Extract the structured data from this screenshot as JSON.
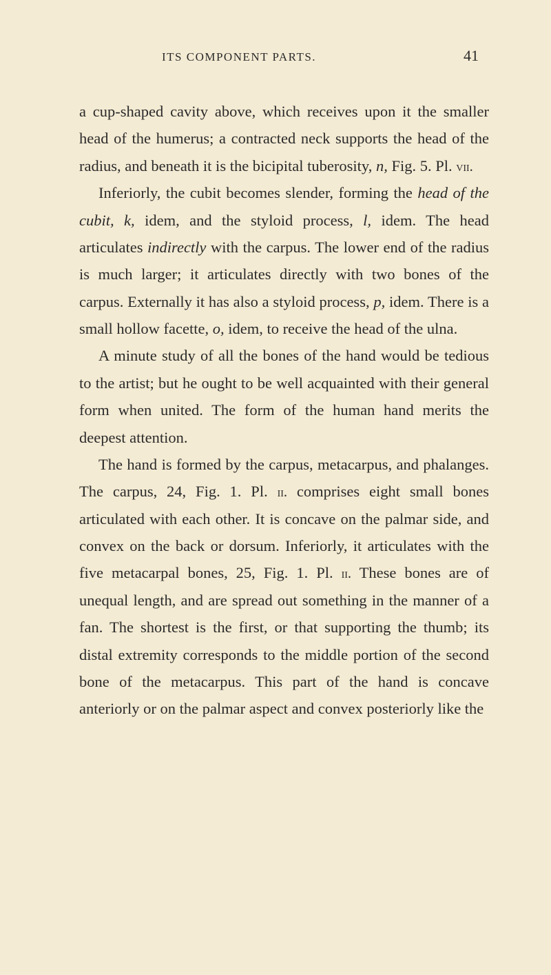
{
  "header": {
    "running_head": "ITS COMPONENT PARTS.",
    "page_number": "41"
  },
  "paragraphs": [
    {
      "segments": [
        {
          "text": "a cup-shaped cavity above, which receives upon it the smaller head of the humerus; a contracted neck supports the head of the radius, and beneath it is the bicipital tuberosity, ",
          "style": "normal"
        },
        {
          "text": "n,",
          "style": "italic"
        },
        {
          "text": " Fig. 5. Pl. ",
          "style": "normal"
        },
        {
          "text": "vii.",
          "style": "sc"
        }
      ]
    },
    {
      "segments": [
        {
          "text": "Inferiorly, the cubit becomes slender, forming the ",
          "style": "normal"
        },
        {
          "text": "head of the cubit, k,",
          "style": "italic"
        },
        {
          "text": " idem, and the styloid process, ",
          "style": "normal"
        },
        {
          "text": "l,",
          "style": "italic"
        },
        {
          "text": " idem. The head articulates ",
          "style": "normal"
        },
        {
          "text": "indirectly",
          "style": "italic"
        },
        {
          "text": " with the carpus. The lower end of the radius is much larger; it articulates directly with two bones of the carpus. Externally it has also a styloid process, ",
          "style": "normal"
        },
        {
          "text": "p,",
          "style": "italic"
        },
        {
          "text": " idem. There is a small hollow facette, ",
          "style": "normal"
        },
        {
          "text": "o,",
          "style": "italic"
        },
        {
          "text": " idem, to receive the head of the ulna.",
          "style": "normal"
        }
      ]
    },
    {
      "segments": [
        {
          "text": "A minute study of all the bones of the hand would be tedious to the artist; but he ought to be well acquainted with their general form when united. The form of the human hand merits the deepest attention.",
          "style": "normal"
        }
      ]
    },
    {
      "segments": [
        {
          "text": "The hand is formed by the carpus, metacarpus, and phalanges. The carpus, 24, Fig. 1. Pl. ",
          "style": "normal"
        },
        {
          "text": "ii.",
          "style": "sc"
        },
        {
          "text": " comprises eight small bones articulated with each other. It is concave on the palmar side, and convex on the back or dorsum. Inferiorly, it articulates with the five metacarpal bones, 25, Fig. 1. Pl. ",
          "style": "normal"
        },
        {
          "text": "ii.",
          "style": "sc"
        },
        {
          "text": " These bones are of unequal length, and are spread out something in the manner of a fan. The shortest is the first, or that supporting the thumb; its distal extremity corresponds to the middle portion of the second bone of the metacarpus. This part of the hand is concave anteriorly or on the palmar aspect and convex posteriorly like the",
          "style": "normal"
        }
      ]
    }
  ]
}
